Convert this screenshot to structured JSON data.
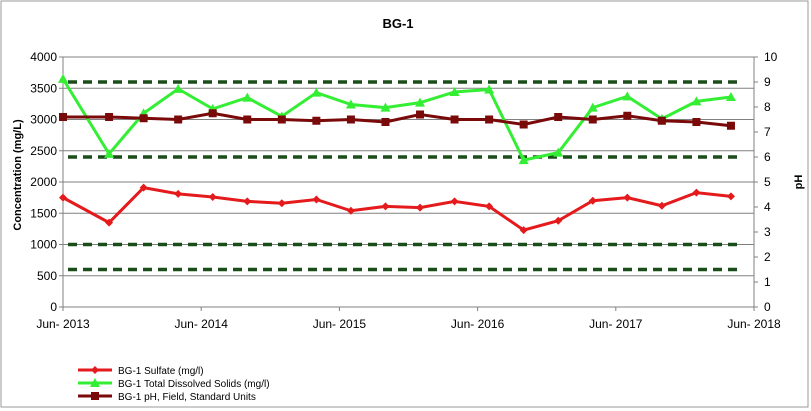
{
  "chart_data": {
    "type": "line",
    "title": "BG-1",
    "ylabel": "Concentration (mg/L)",
    "y2label": "pH",
    "ylim": [
      0,
      4000
    ],
    "y2lim": [
      0,
      10
    ],
    "y_ticks": [
      "0",
      "500",
      "1000",
      "1500",
      "2000",
      "2500",
      "3000",
      "3500",
      "4000"
    ],
    "y2_ticks": [
      "0",
      "1",
      "2",
      "3",
      "4",
      "5",
      "6",
      "7",
      "8",
      "9",
      "10"
    ],
    "x_ticks": [
      "Jun- 2013",
      "Jun- 2014",
      "Jun- 2015",
      "Jun- 2016",
      "Jun- 2017",
      "Jun- 2018"
    ],
    "xlim": [
      "2013-06",
      "2018-06"
    ],
    "grid": true,
    "legend_position": "bottom-left",
    "colors": {
      "sulfate": "#e41a1c",
      "tds": "#33ee33",
      "ph": "#7a0a0a",
      "limits": "#1a4d1a"
    },
    "x": [
      "2013-06",
      "2013-10",
      "2014-01",
      "2014-04",
      "2014-07",
      "2014-10",
      "2015-01",
      "2015-04",
      "2015-07",
      "2015-10",
      "2016-01",
      "2016-04",
      "2016-07",
      "2016-10",
      "2017-01",
      "2017-04",
      "2017-07",
      "2017-10",
      "2018-01",
      "2018-04"
    ],
    "series": [
      {
        "name": "BG-1 Sulfate (mg/l)",
        "axis": "left",
        "marker": "diamond",
        "values": [
          1750,
          1350,
          1910,
          1810,
          1760,
          1690,
          1660,
          1720,
          1540,
          1610,
          1590,
          1690,
          1610,
          1230,
          1380,
          1700,
          1750,
          1620,
          1830,
          1770
        ]
      },
      {
        "name": "BG-1 Total Dissolved Solids (mg/l)",
        "axis": "left",
        "marker": "triangle",
        "values": [
          3650,
          2450,
          3100,
          3490,
          3170,
          3350,
          3050,
          3430,
          3240,
          3190,
          3270,
          3440,
          3480,
          2350,
          2470,
          3190,
          3370,
          3010,
          3290,
          3360
        ]
      },
      {
        "name": "BG-1 pH, Field, Standard Units",
        "axis": "right",
        "marker": "square",
        "values": [
          7.6,
          7.6,
          7.55,
          7.5,
          7.75,
          7.5,
          7.5,
          7.45,
          7.5,
          7.4,
          7.7,
          7.5,
          7.5,
          7.3,
          7.6,
          7.5,
          7.65,
          7.45,
          7.4,
          7.25
        ]
      }
    ],
    "reference_lines_right_axis": [
      9,
      6,
      2.5,
      1.5
    ]
  }
}
